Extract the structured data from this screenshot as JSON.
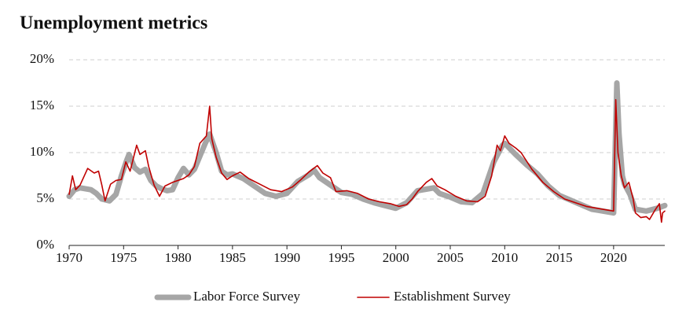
{
  "chart_data": {
    "type": "line",
    "title": "Unemployment metrics",
    "xlim": [
      1970,
      2024.7
    ],
    "xticks": [
      1970,
      1975,
      1980,
      1985,
      1990,
      1995,
      2000,
      2005,
      2010,
      2015,
      2020
    ],
    "ylim": [
      0,
      20
    ],
    "yticks": [
      {
        "value": 0,
        "label": "0%"
      },
      {
        "value": 5,
        "label": "5%"
      },
      {
        "value": 10,
        "label": "10%"
      },
      {
        "value": 15,
        "label": "15%"
      },
      {
        "value": 20,
        "label": "20%"
      }
    ],
    "grid": true,
    "legend": "bottom",
    "series": [
      {
        "name": "Labor Force Survey",
        "color": "#a6a6a6",
        "x": [
          1970,
          1970.5,
          1971,
          1972,
          1972.5,
          1973,
          1973.7,
          1974.3,
          1974.8,
          1975.3,
          1975.5,
          1976,
          1976.5,
          1977,
          1977.5,
          1978,
          1978.5,
          1979,
          1979.5,
          1980,
          1980.5,
          1981,
          1981.5,
          1982,
          1982.5,
          1982.9,
          1983.5,
          1984,
          1984.5,
          1985,
          1986,
          1987,
          1988,
          1989,
          1990,
          1991,
          1992,
          1992.5,
          1993,
          1994,
          1995,
          1996,
          1997,
          1998,
          1999,
          2000,
          2001,
          2002,
          2003,
          2003.5,
          2004,
          2005,
          2006,
          2007,
          2008,
          2009,
          2009.8,
          2010,
          2011,
          2012,
          2013,
          2014,
          2015,
          2016,
          2017,
          2018,
          2019,
          2020,
          2020.3,
          2020.5,
          2020.8,
          2021,
          2021.5,
          2022,
          2023,
          2024,
          2024.7
        ],
        "values": [
          5.3,
          6.0,
          6.2,
          6.0,
          5.6,
          5.0,
          4.8,
          5.5,
          7.5,
          9.2,
          9.8,
          8.4,
          7.9,
          8.2,
          7.0,
          6.4,
          6.1,
          5.9,
          6.0,
          7.3,
          8.3,
          7.6,
          8.2,
          9.6,
          11.0,
          12.0,
          10.0,
          8.0,
          7.6,
          7.7,
          7.2,
          6.4,
          5.6,
          5.3,
          5.6,
          6.9,
          7.6,
          8.1,
          7.3,
          6.5,
          5.7,
          5.5,
          5.0,
          4.6,
          4.3,
          4.0,
          4.6,
          5.9,
          6.1,
          6.2,
          5.6,
          5.2,
          4.7,
          4.6,
          5.6,
          9.0,
          10.8,
          11.0,
          9.8,
          8.7,
          7.7,
          6.4,
          5.4,
          4.9,
          4.4,
          3.9,
          3.7,
          3.5,
          17.5,
          12.0,
          7.5,
          6.6,
          5.5,
          3.9,
          3.7,
          4.0,
          4.3
        ]
      },
      {
        "name": "Establishment Survey",
        "color": "#c00000",
        "x": [
          1970,
          1970.3,
          1970.6,
          1971,
          1971.7,
          1972.3,
          1972.7,
          1973,
          1973.3,
          1973.8,
          1974.3,
          1974.8,
          1975.2,
          1975.6,
          1976.2,
          1976.5,
          1977,
          1977.3,
          1977.8,
          1978.3,
          1978.8,
          1979.5,
          1980,
          1980.5,
          1981,
          1981.5,
          1982,
          1982.6,
          1982.9,
          1983.1,
          1983.5,
          1984,
          1984.5,
          1985,
          1985.7,
          1986.5,
          1987.5,
          1988.5,
          1989.5,
          1990.5,
          1991.2,
          1992,
          1992.8,
          1993.3,
          1994,
          1994.5,
          1995.5,
          1996.5,
          1997.5,
          1998.5,
          1999.5,
          2000.3,
          2001,
          2001.5,
          2002,
          2002.8,
          2003.3,
          2003.8,
          2004.5,
          2005.5,
          2006.5,
          2007.5,
          2008.2,
          2008.8,
          2009.3,
          2009.6,
          2010,
          2010.4,
          2011,
          2011.5,
          2012.5,
          2013.5,
          2014.5,
          2015.5,
          2016.5,
          2017.5,
          2018.5,
          2019.5,
          2020,
          2020.2,
          2020.4,
          2020.7,
          2021,
          2021.4,
          2021.8,
          2022,
          2022.5,
          2023,
          2023.3,
          2023.8,
          2024.2,
          2024.4,
          2024.5,
          2024.7
        ],
        "values": [
          5.5,
          7.5,
          6.0,
          6.5,
          8.3,
          7.8,
          8.0,
          6.5,
          4.8,
          6.6,
          7.0,
          7.1,
          9.0,
          8.0,
          10.8,
          9.8,
          10.2,
          8.5,
          6.5,
          5.3,
          6.4,
          6.8,
          7.0,
          7.2,
          7.6,
          8.5,
          11.0,
          11.8,
          15.0,
          11.5,
          9.5,
          7.8,
          7.1,
          7.5,
          7.9,
          7.2,
          6.6,
          6.0,
          5.8,
          6.3,
          7.0,
          7.9,
          8.6,
          7.8,
          7.3,
          5.8,
          5.9,
          5.6,
          5.0,
          4.7,
          4.5,
          4.2,
          4.4,
          5.0,
          5.8,
          6.8,
          7.2,
          6.4,
          6.0,
          5.3,
          4.8,
          4.7,
          5.3,
          7.5,
          10.8,
          10.2,
          11.8,
          11.0,
          10.5,
          10.0,
          8.2,
          6.8,
          5.8,
          5.0,
          4.6,
          4.2,
          4.0,
          3.8,
          3.7,
          15.7,
          10.0,
          7.5,
          6.2,
          6.8,
          5.0,
          3.5,
          3.0,
          3.1,
          2.8,
          3.8,
          4.5,
          2.5,
          3.5,
          3.7
        ]
      }
    ]
  }
}
